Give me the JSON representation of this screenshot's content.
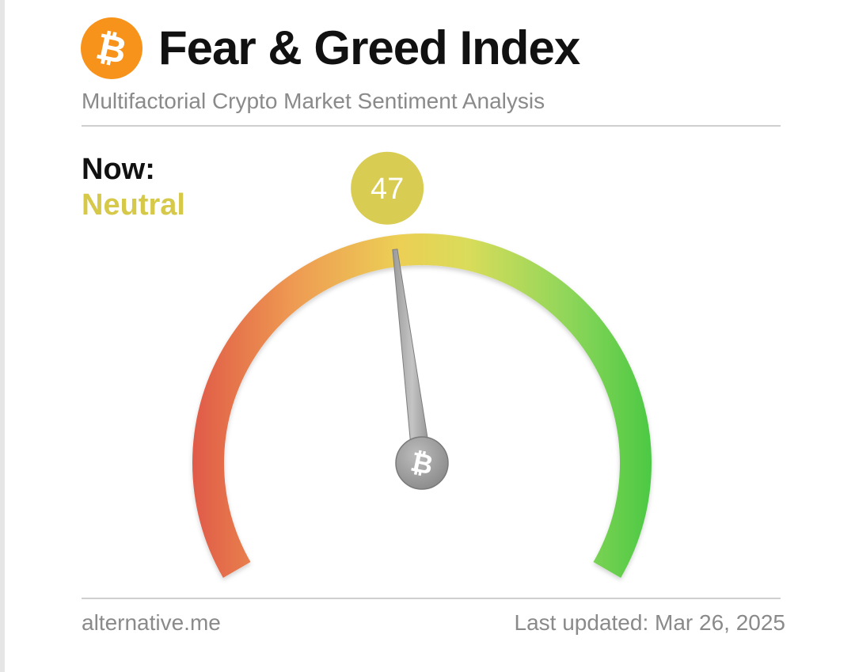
{
  "header": {
    "title": "Fear & Greed Index",
    "subtitle": "Multifactorial Crypto Market Sentiment Analysis",
    "logo_icon": "bitcoin-icon",
    "logo_glyph": "₿"
  },
  "now": {
    "label": "Now:",
    "value_label": "Neutral",
    "value_color": "#d6c94a"
  },
  "gauge": {
    "value": 47,
    "min": 0,
    "max": 100,
    "badge_color": "#d8cc52",
    "hub_icon": "bitcoin-icon",
    "hub_glyph": "₿",
    "gradient_colors": [
      "#e05a48",
      "#ee9a52",
      "#eccf55",
      "#d9dc5a",
      "#8ed65a",
      "#4cc944"
    ]
  },
  "footer": {
    "source": "alternative.me",
    "last_updated": "Last updated: Mar 26, 2025"
  },
  "colors": {
    "brand_orange": "#f7931a",
    "title_text": "#111111",
    "muted_text": "#8a8a8a"
  }
}
